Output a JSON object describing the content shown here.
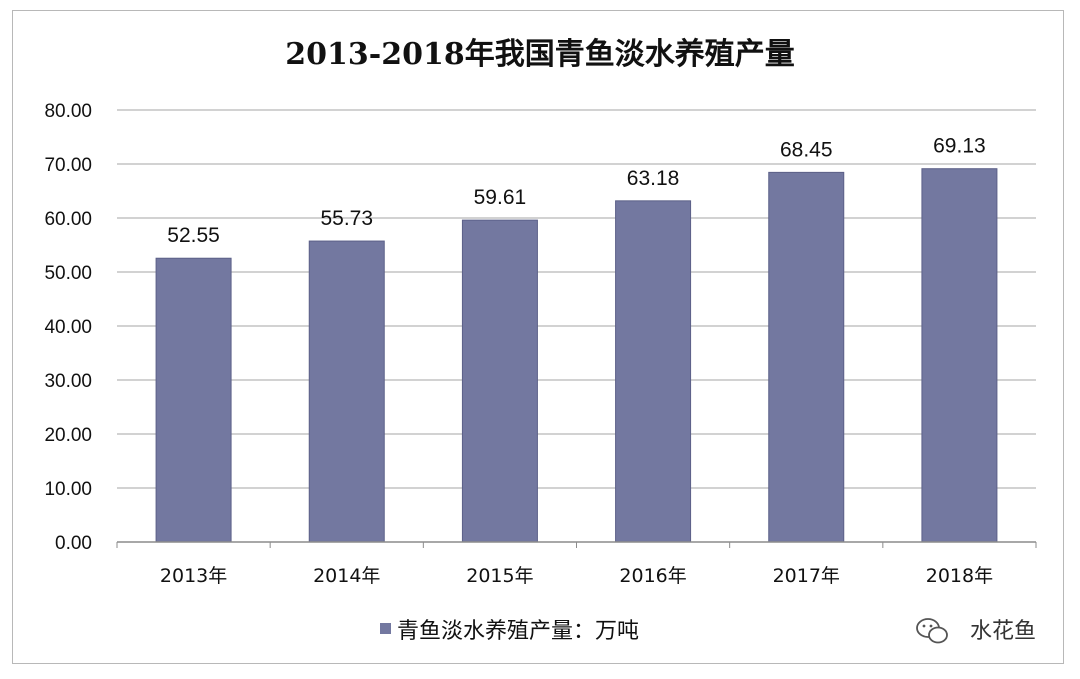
{
  "chart_data": {
    "type": "bar",
    "title": "2013-2018年我国青鱼淡水养殖产量",
    "categories": [
      "2013年",
      "2014年",
      "2015年",
      "2016年",
      "2017年",
      "2018年"
    ],
    "series": [
      {
        "name": "青鱼淡水养殖产量：万吨",
        "values": [
          52.55,
          55.73,
          59.61,
          63.18,
          68.45,
          69.13
        ],
        "color": "#7378a0"
      }
    ],
    "data_labels": [
      "52.55",
      "55.73",
      "59.61",
      "63.18",
      "68.45",
      "69.13"
    ],
    "y_ticks": [
      "0.00",
      "10.00",
      "20.00",
      "30.00",
      "40.00",
      "50.00",
      "60.00",
      "70.00",
      "80.00"
    ],
    "ylim": [
      0,
      80
    ],
    "grid": true,
    "legend": "bottom-center"
  },
  "watermark": {
    "text": "水花鱼",
    "icon": "wechat-icon"
  }
}
